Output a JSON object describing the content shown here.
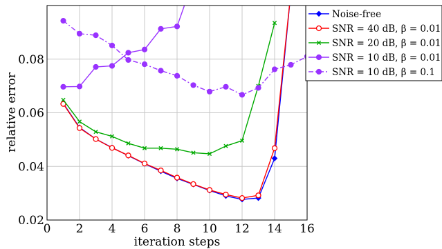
{
  "chart_data": {
    "type": "line",
    "xlabel": "iteration steps",
    "ylabel": "relative error",
    "xlim": [
      0,
      16
    ],
    "ylim": [
      0.02,
      0.1
    ],
    "x_ticks": [
      "0",
      "2",
      "4",
      "6",
      "8",
      "10",
      "12",
      "14",
      "16"
    ],
    "y_ticks": [
      "0.02",
      "0.04",
      "0.06",
      "0.08"
    ],
    "grid": true,
    "legend_position": "right",
    "series": [
      {
        "name": "Noise-free",
        "color": "#0000ff",
        "marker": "diamond",
        "line": "solid",
        "x": [
          1,
          2,
          3,
          4,
          5,
          6,
          7,
          8,
          9,
          10,
          11,
          12,
          13,
          14,
          15
        ],
        "y": [
          0.0635,
          0.0545,
          0.0502,
          0.047,
          0.044,
          0.041,
          0.0382,
          0.0355,
          0.0333,
          0.031,
          0.029,
          0.0277,
          0.0282,
          0.043,
          0.105
        ]
      },
      {
        "name": "SNR = 40 dB, β = 0.01",
        "color": "#ff0000",
        "marker": "circle-open",
        "line": "solid",
        "x": [
          1,
          2,
          3,
          4,
          5,
          6,
          7,
          8,
          9,
          10,
          11,
          12,
          13,
          14,
          15
        ],
        "y": [
          0.0633,
          0.0543,
          0.0502,
          0.0469,
          0.0441,
          0.0411,
          0.0385,
          0.0358,
          0.0334,
          0.0312,
          0.0295,
          0.0282,
          0.0292,
          0.0468,
          0.105
        ]
      },
      {
        "name": "SNR = 20 dB, β = 0.01",
        "color": "#00aa00",
        "marker": "x",
        "line": "solid",
        "x": [
          1,
          2,
          3,
          4,
          5,
          6,
          7,
          8,
          9,
          10,
          11,
          12,
          13,
          14
        ],
        "y": [
          0.0648,
          0.0567,
          0.0529,
          0.0512,
          0.0486,
          0.0468,
          0.0468,
          0.0464,
          0.0451,
          0.0447,
          0.0476,
          0.0496,
          0.07,
          0.0935
        ]
      },
      {
        "name": "SNR = 10 dB, β = 0.01",
        "color": "#9933ff",
        "marker": "circle",
        "line": "solid",
        "x": [
          1,
          2,
          3,
          4,
          5,
          6,
          7,
          8,
          8.45
        ],
        "y": [
          0.0697,
          0.0698,
          0.0771,
          0.0775,
          0.0824,
          0.0836,
          0.0913,
          0.0922,
          0.1
        ]
      },
      {
        "name": "SNR = 10 dB, β = 0.1",
        "color": "#9933ff",
        "marker": "circle",
        "line": "dashdot",
        "x": [
          1,
          2,
          3,
          4,
          5,
          6,
          7,
          8,
          9,
          10,
          11,
          12,
          13,
          14,
          15,
          16
        ],
        "y": [
          0.0943,
          0.0895,
          0.0889,
          0.0851,
          0.0797,
          0.0781,
          0.0757,
          0.0738,
          0.0703,
          0.0679,
          0.0697,
          0.0667,
          0.0693,
          0.0762,
          0.0779,
          0.081
        ]
      }
    ]
  }
}
